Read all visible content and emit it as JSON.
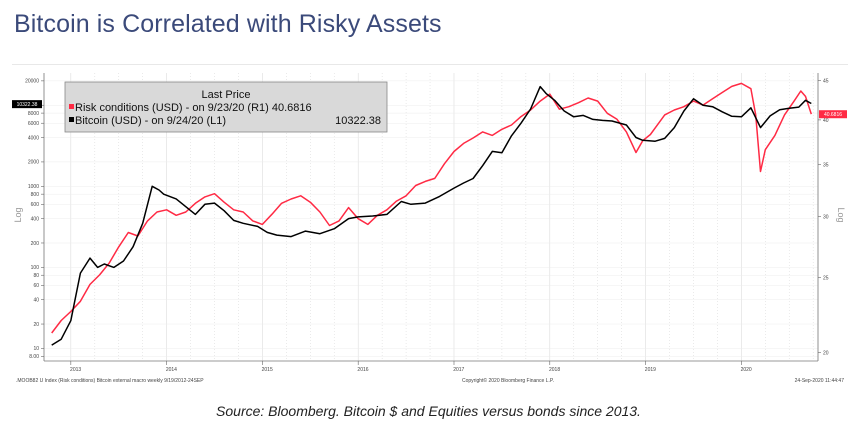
{
  "page": {
    "title": "Bitcoin is Correlated with Risky Assets",
    "caption": "Source: Bloomberg. Bitcoin $ and Equities versus bonds since 2013."
  },
  "chart_data": {
    "type": "line",
    "legend": {
      "title": "Last Price",
      "items": [
        {
          "marker": "■",
          "label": "Risk conditions (USD) -  on 9/23/20  (R1) 40.6816",
          "color": "#ff2a44"
        },
        {
          "marker": "■",
          "label": "Bitcoin (USD) -  on 9/24/20  (L1)",
          "value": "10322.38",
          "color": "#000000"
        }
      ],
      "placement": "top-left"
    },
    "left_axis": {
      "label": "Log",
      "scale": "log",
      "ticks": [
        "20000",
        "10000",
        "8000",
        "6000",
        "4000",
        "2000",
        "1000",
        "800",
        "600",
        "400",
        "200",
        "100",
        "80",
        "60",
        "40",
        "20",
        "10",
        "8.00"
      ],
      "tick_values": [
        20000,
        10000,
        8000,
        6000,
        4000,
        2000,
        1000,
        800,
        600,
        400,
        200,
        100,
        80,
        60,
        40,
        20,
        10,
        8
      ],
      "current_value_badge": "10322.38",
      "range": [
        7,
        25000
      ]
    },
    "right_axis": {
      "label": "Log",
      "scale": "log",
      "ticks": [
        "45",
        "40",
        "35",
        "30",
        "25",
        "20"
      ],
      "tick_values": [
        45,
        40,
        35,
        30,
        25,
        20
      ],
      "current_value_badge": "40.6816",
      "range": [
        19.5,
        46
      ]
    },
    "x_axis": {
      "ticks": [
        "2013",
        "2014",
        "2015",
        "2016",
        "2017",
        "2018",
        "2019",
        "2020"
      ],
      "range": [
        "2012-10",
        "2020-10"
      ]
    },
    "footer_left": ".MOOB82 U Index (Risk conditions) Bitcoin external macro weekly 9/19/2012-24SEP",
    "footer_center": "Copyright© 2020 Bloomberg Finance L.P.",
    "footer_right": "24-Sep-2020 11:44:47",
    "grid": true,
    "series": [
      {
        "name": "Bitcoin (USD)",
        "axis": "left",
        "color": "#000000",
        "x": [
          2012.8,
          2012.9,
          2013.0,
          2013.1,
          2013.2,
          2013.28,
          2013.35,
          2013.45,
          2013.55,
          2013.65,
          2013.75,
          2013.85,
          2013.92,
          2013.97,
          2014.1,
          2014.2,
          2014.3,
          2014.4,
          2014.5,
          2014.6,
          2014.7,
          2014.8,
          2014.95,
          2015.05,
          2015.15,
          2015.3,
          2015.45,
          2015.6,
          2015.75,
          2015.9,
          2016.0,
          2016.15,
          2016.3,
          2016.45,
          2016.55,
          2016.7,
          2016.85,
          2017.0,
          2017.1,
          2017.2,
          2017.3,
          2017.4,
          2017.5,
          2017.6,
          2017.7,
          2017.8,
          2017.9,
          2017.96,
          2018.05,
          2018.15,
          2018.25,
          2018.35,
          2018.45,
          2018.55,
          2018.65,
          2018.8,
          2018.9,
          2018.97,
          2019.1,
          2019.2,
          2019.3,
          2019.4,
          2019.5,
          2019.6,
          2019.7,
          2019.8,
          2019.9,
          2020.0,
          2020.1,
          2020.2,
          2020.3,
          2020.4,
          2020.5,
          2020.6,
          2020.67,
          2020.73
        ],
        "y": [
          11,
          13,
          22,
          85,
          130,
          100,
          110,
          100,
          120,
          180,
          350,
          1000,
          900,
          800,
          700,
          560,
          450,
          600,
          620,
          500,
          380,
          350,
          320,
          270,
          250,
          240,
          280,
          260,
          300,
          400,
          420,
          430,
          450,
          650,
          600,
          620,
          750,
          950,
          1100,
          1250,
          1800,
          2700,
          2600,
          4200,
          6000,
          9000,
          17000,
          14000,
          11500,
          8500,
          7200,
          7500,
          6700,
          6500,
          6400,
          5700,
          4000,
          3700,
          3600,
          3900,
          5300,
          8500,
          12000,
          10000,
          9600,
          8300,
          7300,
          7200,
          9300,
          5300,
          7400,
          8800,
          9200,
          9500,
          11500,
          10500
        ]
      },
      {
        "name": "Risk conditions (USD)",
        "axis": "right",
        "color": "#ff2a44",
        "x": [
          2012.8,
          2012.9,
          2013.0,
          2013.1,
          2013.2,
          2013.3,
          2013.4,
          2013.5,
          2013.6,
          2013.7,
          2013.8,
          2013.9,
          2014.0,
          2014.1,
          2014.2,
          2014.3,
          2014.4,
          2014.5,
          2014.6,
          2014.7,
          2014.8,
          2014.9,
          2015.0,
          2015.1,
          2015.2,
          2015.3,
          2015.4,
          2015.5,
          2015.6,
          2015.7,
          2015.8,
          2015.9,
          2016.0,
          2016.1,
          2016.2,
          2016.3,
          2016.4,
          2016.5,
          2016.6,
          2016.7,
          2016.8,
          2016.9,
          2017.0,
          2017.1,
          2017.2,
          2017.3,
          2017.4,
          2017.5,
          2017.6,
          2017.7,
          2017.8,
          2017.9,
          2018.0,
          2018.1,
          2018.2,
          2018.3,
          2018.4,
          2018.5,
          2018.6,
          2018.7,
          2018.8,
          2018.9,
          2018.97,
          2019.05,
          2019.2,
          2019.3,
          2019.4,
          2019.5,
          2019.6,
          2019.7,
          2019.8,
          2019.9,
          2020.0,
          2020.1,
          2020.15,
          2020.2,
          2020.25,
          2020.35,
          2020.45,
          2020.55,
          2020.62,
          2020.67,
          2020.73
        ],
        "y": [
          21.2,
          22,
          22.6,
          23.3,
          24.5,
          25.2,
          26.1,
          27.4,
          28.6,
          28.3,
          29.6,
          30.4,
          30.6,
          30.1,
          30.4,
          31.2,
          31.8,
          32.1,
          31.3,
          30.6,
          30.4,
          29.6,
          29.3,
          30.2,
          31.2,
          31.6,
          31.9,
          31.3,
          30.4,
          29.2,
          29.6,
          30.8,
          29.8,
          29.3,
          30.1,
          30.6,
          31.4,
          31.9,
          32.9,
          33.3,
          33.6,
          35.1,
          36.4,
          37.3,
          37.9,
          38.6,
          38.2,
          38.9,
          39.4,
          40.4,
          41.2,
          42.3,
          43.2,
          41.3,
          41.6,
          42.1,
          42.7,
          42.3,
          40.8,
          40.1,
          38.6,
          36.3,
          37.6,
          38.3,
          40.6,
          41.2,
          41.6,
          42.3,
          41.8,
          42.6,
          43.4,
          44.2,
          44.6,
          43.9,
          40.6,
          34.3,
          36.6,
          38.2,
          40.6,
          42.3,
          43.6,
          42.9,
          40.7
        ]
      }
    ]
  }
}
